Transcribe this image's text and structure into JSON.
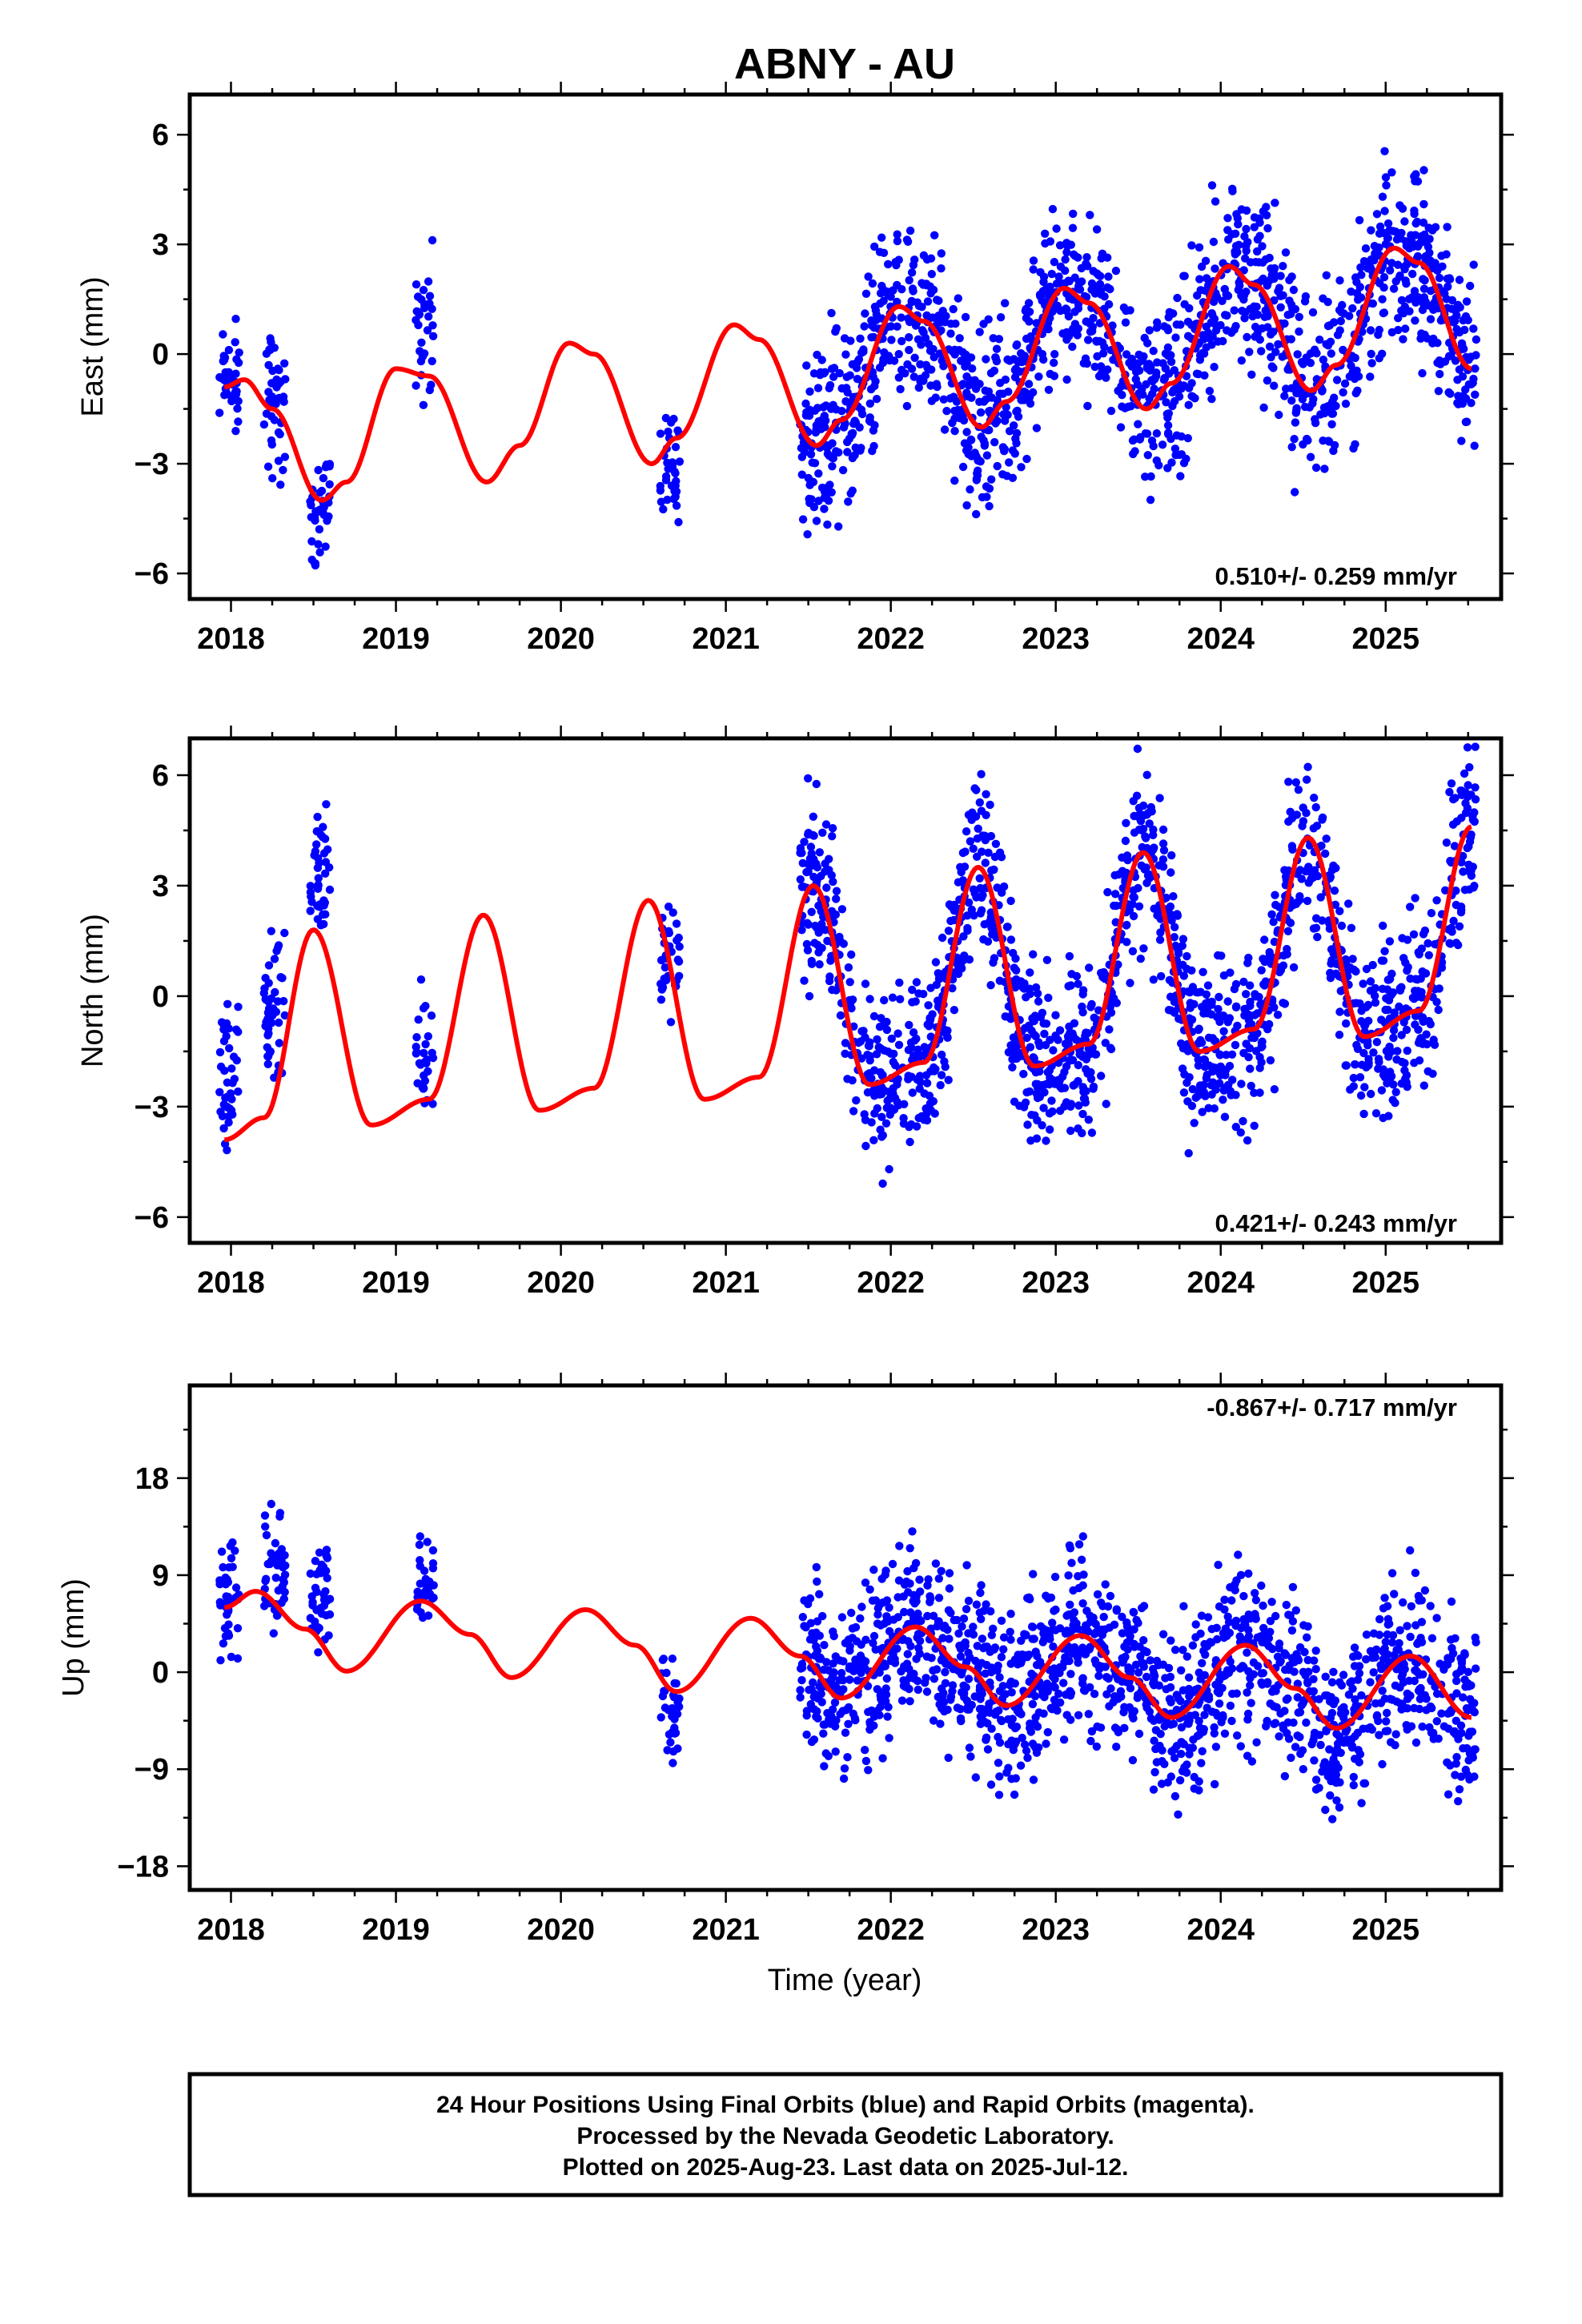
{
  "title": "ABNY - AU",
  "xlabel": "Time (year)",
  "caption": [
    "24 Hour Positions Using Final Orbits (blue) and Rapid Orbits (magenta).",
    "Processed by the Nevada Geodetic Laboratory.",
    "Plotted on 2025-Aug-23. Last data on 2025-Jul-12."
  ],
  "colors": {
    "final_orbits": "#0000ff",
    "fit_line": "#ff0000",
    "frame": "#000000"
  },
  "chart_data": [
    {
      "type": "scatter",
      "component": "east",
      "ylabel": "East (mm)",
      "rate_label": "0.510+/- 0.259 mm/yr",
      "xlim": [
        2017.75,
        2025.7
      ],
      "ylim": [
        -6.7,
        7.1
      ],
      "xticks": [
        2018,
        2019,
        2020,
        2021,
        2022,
        2023,
        2024,
        2025
      ],
      "yticks": [
        -6,
        -3,
        0,
        3,
        6
      ],
      "ytick_labels": [
        "−6",
        "−3",
        "0",
        "3",
        "6"
      ],
      "fit": {
        "points": [
          [
            2017.96,
            -0.9
          ],
          [
            2018.08,
            -0.7
          ],
          [
            2018.25,
            -1.5
          ],
          [
            2018.55,
            -4.0
          ],
          [
            2018.7,
            -3.5
          ],
          [
            2019.0,
            -0.4
          ],
          [
            2019.2,
            -0.6
          ],
          [
            2019.55,
            -3.5
          ],
          [
            2019.75,
            -2.5
          ],
          [
            2020.05,
            0.3
          ],
          [
            2020.2,
            0.0
          ],
          [
            2020.55,
            -3.0
          ],
          [
            2020.7,
            -2.3
          ],
          [
            2021.05,
            0.8
          ],
          [
            2021.2,
            0.4
          ],
          [
            2021.55,
            -2.5
          ],
          [
            2021.7,
            -1.8
          ],
          [
            2022.05,
            1.3
          ],
          [
            2022.2,
            0.9
          ],
          [
            2022.55,
            -2.0
          ],
          [
            2022.7,
            -1.3
          ],
          [
            2023.05,
            1.8
          ],
          [
            2023.2,
            1.4
          ],
          [
            2023.55,
            -1.5
          ],
          [
            2023.7,
            -0.8
          ],
          [
            2024.05,
            2.4
          ],
          [
            2024.2,
            1.9
          ],
          [
            2024.55,
            -1.0
          ],
          [
            2024.7,
            -0.3
          ],
          [
            2025.05,
            2.9
          ],
          [
            2025.2,
            2.5
          ],
          [
            2025.52,
            -0.4
          ]
        ]
      },
      "scatter_clusters": [
        {
          "x0": 2017.93,
          "x1": 2018.05,
          "y": [
            -2.8,
            1.4
          ],
          "n": 40
        },
        {
          "x0": 2018.2,
          "x1": 2018.33,
          "y": [
            -4.0,
            1.3
          ],
          "n": 45
        },
        {
          "x0": 2018.48,
          "x1": 2018.6,
          "y": [
            -6.2,
            -2.2
          ],
          "n": 40
        },
        {
          "x0": 2019.12,
          "x1": 2019.23,
          "y": [
            -1.7,
            3.3
          ],
          "n": 30
        },
        {
          "x0": 2020.6,
          "x1": 2020.72,
          "y": [
            -4.9,
            -1.2
          ],
          "n": 35
        },
        {
          "x0": 2021.45,
          "x1": 2025.55,
          "y": [
            -5.7,
            6.8
          ],
          "n": 1500
        }
      ]
    },
    {
      "type": "scatter",
      "component": "north",
      "ylabel": "North (mm)",
      "rate_label": "0.421+/- 0.243 mm/yr",
      "xlim": [
        2017.75,
        2025.7
      ],
      "ylim": [
        -6.7,
        7.0
      ],
      "xticks": [
        2018,
        2019,
        2020,
        2021,
        2022,
        2023,
        2024,
        2025
      ],
      "yticks": [
        -6,
        -3,
        0,
        3,
        6
      ],
      "ytick_labels": [
        "−6",
        "−3",
        "0",
        "3",
        "6"
      ],
      "fit": {
        "points": [
          [
            2017.96,
            -3.9
          ],
          [
            2018.2,
            -3.3
          ],
          [
            2018.5,
            1.8
          ],
          [
            2018.85,
            -3.5
          ],
          [
            2019.2,
            -2.8
          ],
          [
            2019.53,
            2.2
          ],
          [
            2019.87,
            -3.1
          ],
          [
            2020.2,
            -2.5
          ],
          [
            2020.53,
            2.6
          ],
          [
            2020.87,
            -2.8
          ],
          [
            2021.2,
            -2.2
          ],
          [
            2021.53,
            3.0
          ],
          [
            2021.87,
            -2.4
          ],
          [
            2022.2,
            -1.8
          ],
          [
            2022.53,
            3.5
          ],
          [
            2022.87,
            -1.9
          ],
          [
            2023.2,
            -1.3
          ],
          [
            2023.53,
            3.9
          ],
          [
            2023.87,
            -1.5
          ],
          [
            2024.2,
            -0.9
          ],
          [
            2024.53,
            4.3
          ],
          [
            2024.87,
            -1.1
          ],
          [
            2025.2,
            -0.4
          ],
          [
            2025.52,
            4.6
          ]
        ]
      },
      "scatter_clusters": [
        {
          "x0": 2017.93,
          "x1": 2018.05,
          "y": [
            -4.6,
            0.5
          ],
          "n": 40
        },
        {
          "x0": 2018.2,
          "x1": 2018.33,
          "y": [
            -3.0,
            2.2
          ],
          "n": 45
        },
        {
          "x0": 2018.48,
          "x1": 2018.6,
          "y": [
            1.4,
            5.3
          ],
          "n": 40
        },
        {
          "x0": 2019.12,
          "x1": 2019.23,
          "y": [
            -4.1,
            0.7
          ],
          "n": 30
        },
        {
          "x0": 2020.6,
          "x1": 2020.72,
          "y": [
            -1.2,
            3.1
          ],
          "n": 35
        },
        {
          "x0": 2021.45,
          "x1": 2025.55,
          "y": [
            -6.5,
            6.8
          ],
          "n": 1500
        }
      ]
    },
    {
      "type": "scatter",
      "component": "up",
      "ylabel": "Up (mm)",
      "rate_label": "-0.867+/- 0.717 mm/yr",
      "xlim": [
        2017.75,
        2025.7
      ],
      "ylim": [
        -20.2,
        26.6
      ],
      "xticks": [
        2018,
        2019,
        2020,
        2021,
        2022,
        2023,
        2024,
        2025
      ],
      "yticks": [
        -18,
        -9,
        0,
        9,
        18
      ],
      "ytick_labels": [
        "−18",
        "−9",
        "0",
        "9",
        "18"
      ],
      "fit": {
        "points": [
          [
            2017.96,
            6.0
          ],
          [
            2018.15,
            7.5
          ],
          [
            2018.45,
            4.0
          ],
          [
            2018.7,
            0.1
          ],
          [
            2019.15,
            6.6
          ],
          [
            2019.45,
            3.5
          ],
          [
            2019.7,
            -0.5
          ],
          [
            2020.15,
            5.8
          ],
          [
            2020.45,
            2.5
          ],
          [
            2020.7,
            -1.8
          ],
          [
            2021.15,
            5.0
          ],
          [
            2021.45,
            1.5
          ],
          [
            2021.7,
            -2.4
          ],
          [
            2022.15,
            4.2
          ],
          [
            2022.45,
            0.5
          ],
          [
            2022.7,
            -3.1
          ],
          [
            2023.15,
            3.4
          ],
          [
            2023.45,
            -0.5
          ],
          [
            2023.7,
            -4.2
          ],
          [
            2024.15,
            2.5
          ],
          [
            2024.45,
            -1.5
          ],
          [
            2024.7,
            -5.2
          ],
          [
            2025.15,
            1.5
          ],
          [
            2025.52,
            -4.2
          ]
        ]
      },
      "scatter_clusters": [
        {
          "x0": 2017.93,
          "x1": 2018.05,
          "y": [
            -0.5,
            14.5
          ],
          "n": 40
        },
        {
          "x0": 2018.2,
          "x1": 2018.33,
          "y": [
            3.0,
            16.5
          ],
          "n": 45
        },
        {
          "x0": 2018.48,
          "x1": 2018.6,
          "y": [
            1.5,
            13.0
          ],
          "n": 40
        },
        {
          "x0": 2019.12,
          "x1": 2019.23,
          "y": [
            3.0,
            13.5
          ],
          "n": 30
        },
        {
          "x0": 2020.6,
          "x1": 2020.72,
          "y": [
            -9.0,
            3.5
          ],
          "n": 35
        },
        {
          "x0": 2021.45,
          "x1": 2025.55,
          "y": [
            -19.5,
            16.0
          ],
          "n": 1500
        }
      ]
    }
  ]
}
